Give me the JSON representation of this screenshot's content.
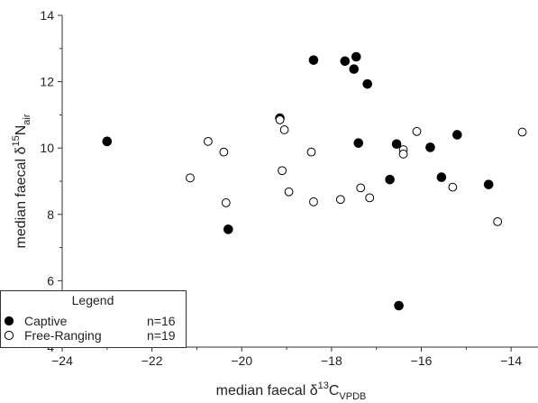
{
  "chart_data": {
    "type": "scatter",
    "xlabel": {
      "prefix": "median faecal δ",
      "sup": "13",
      "main": "C",
      "sub": "VPDB"
    },
    "ylabel": {
      "prefix": "median faecal δ",
      "sup": "15",
      "main": "N",
      "sub": "air"
    },
    "xlim": [
      -24,
      -13.4
    ],
    "ylim": [
      4,
      14
    ],
    "xticks": [
      -24,
      -22,
      -20,
      -18,
      -16,
      -14
    ],
    "yticks": [
      4,
      6,
      8,
      10,
      12,
      14
    ],
    "grid": false,
    "legend": {
      "title": "Legend",
      "placement": "bottom-left",
      "entries": [
        {
          "label": "Captive",
          "count": "n=16",
          "marker": "filled"
        },
        {
          "label": "Free-Ranging",
          "count": "n=19",
          "marker": "open"
        }
      ]
    },
    "series": [
      {
        "name": "Captive",
        "marker": "filled",
        "color": "#000000",
        "points": [
          [
            -23.0,
            10.2
          ],
          [
            -20.3,
            7.55
          ],
          [
            -19.15,
            10.9
          ],
          [
            -18.4,
            12.65
          ],
          [
            -17.7,
            12.62
          ],
          [
            -17.5,
            12.38
          ],
          [
            -17.45,
            12.75
          ],
          [
            -17.2,
            11.93
          ],
          [
            -17.4,
            10.15
          ],
          [
            -16.7,
            9.05
          ],
          [
            -16.55,
            10.12
          ],
          [
            -16.5,
            5.25
          ],
          [
            -15.8,
            10.02
          ],
          [
            -15.55,
            9.12
          ],
          [
            -15.2,
            10.4
          ],
          [
            -14.5,
            8.9
          ]
        ]
      },
      {
        "name": "Free-Ranging",
        "marker": "open",
        "color": "#000000",
        "points": [
          [
            -21.15,
            9.1
          ],
          [
            -20.75,
            10.2
          ],
          [
            -20.4,
            9.88
          ],
          [
            -20.35,
            8.35
          ],
          [
            -19.15,
            10.85
          ],
          [
            -19.1,
            9.32
          ],
          [
            -19.05,
            10.55
          ],
          [
            -18.95,
            8.68
          ],
          [
            -18.45,
            9.88
          ],
          [
            -18.4,
            8.38
          ],
          [
            -17.8,
            8.45
          ],
          [
            -17.35,
            8.8
          ],
          [
            -17.15,
            8.5
          ],
          [
            -16.4,
            9.95
          ],
          [
            -16.4,
            9.82
          ],
          [
            -16.1,
            10.5
          ],
          [
            -15.3,
            8.82
          ],
          [
            -14.3,
            7.78
          ],
          [
            -13.75,
            10.48
          ]
        ]
      }
    ]
  }
}
